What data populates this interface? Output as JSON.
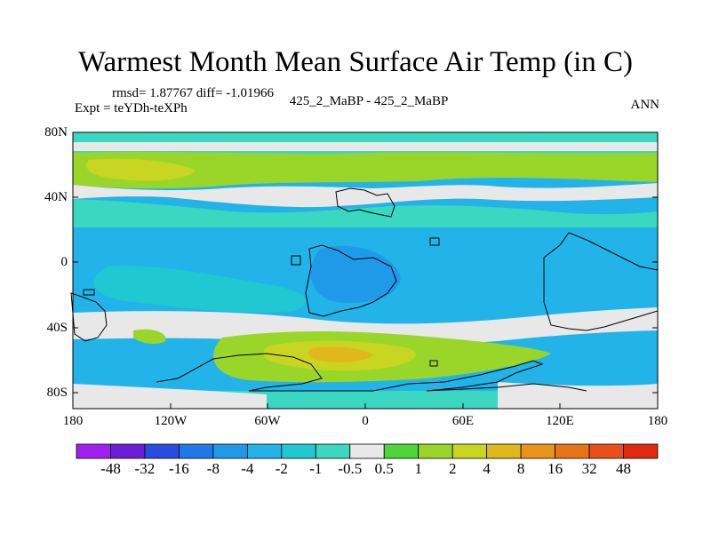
{
  "title": "Warmest Month Mean Surface Air Temp (in C)",
  "stats": "rmsd= 1.87767 diff= -1.01966",
  "expt": "Expt = teYDh-teXPh",
  "center_label": "425_2_MaBP - 425_2_MaBP",
  "period": "ANN",
  "lat_labels": [
    "80N",
    "40N",
    "0",
    "40S",
    "80S"
  ],
  "lon_labels": [
    "180",
    "120W",
    "60W",
    "0",
    "60E",
    "120E",
    "180"
  ],
  "colorbar": {
    "labels": [
      "-48",
      "-32",
      "-16",
      "-8",
      "-4",
      "-2",
      "-1",
      "-0.5",
      "0.5",
      "1",
      "2",
      "4",
      "8",
      "16",
      "32",
      "48"
    ],
    "colors": [
      "#a020f0",
      "#6a1fd6",
      "#2a4be0",
      "#1f78e6",
      "#1f9ae8",
      "#22b3e8",
      "#20c8d2",
      "#3ad8c0",
      "#e8e8e8",
      "#4cd63a",
      "#9ad62a",
      "#c8d622",
      "#e0b81c",
      "#e8941a",
      "#e8741a",
      "#e85018",
      "#e02a10"
    ]
  },
  "map_colors": {
    "zero": "#e8e8e8",
    "cool1": "#3ad8c0",
    "cool2": "#20c8d2",
    "cool3": "#22b3e8",
    "cool4": "#1f9ae8",
    "warm1": "#4cd63a",
    "warm2": "#9ad62a",
    "warm3": "#c8d622",
    "warm4": "#e0b81c",
    "outline": "#000000"
  }
}
